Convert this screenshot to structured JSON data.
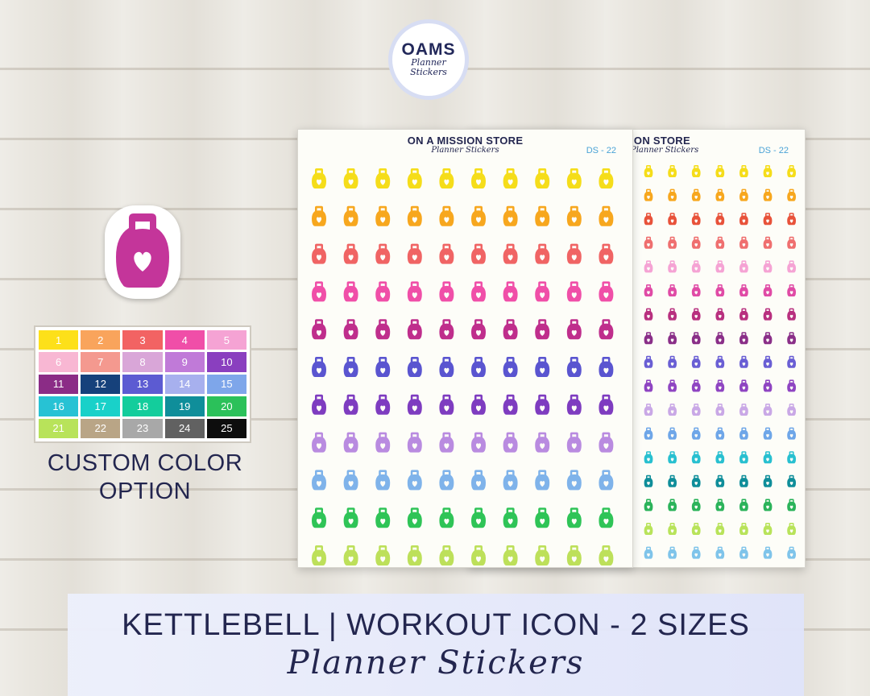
{
  "logo": {
    "main": "OAMS",
    "sub_line1": "Planner",
    "sub_line2": "Stickers"
  },
  "swatches": [
    {
      "n": "1",
      "color": "#fde01a"
    },
    {
      "n": "2",
      "color": "#f9a45c"
    },
    {
      "n": "3",
      "color": "#f26363"
    },
    {
      "n": "4",
      "color": "#f04ea8"
    },
    {
      "n": "5",
      "color": "#f5a3d4"
    },
    {
      "n": "6",
      "color": "#f8b7d3"
    },
    {
      "n": "7",
      "color": "#f4998f"
    },
    {
      "n": "8",
      "color": "#d9a6d8"
    },
    {
      "n": "9",
      "color": "#c07ad8"
    },
    {
      "n": "10",
      "color": "#8a3fbf"
    },
    {
      "n": "11",
      "color": "#8b2c86"
    },
    {
      "n": "12",
      "color": "#16417b"
    },
    {
      "n": "13",
      "color": "#5c5bd2"
    },
    {
      "n": "14",
      "color": "#a7b0ee"
    },
    {
      "n": "15",
      "color": "#7ea6ea"
    },
    {
      "n": "16",
      "color": "#27c2d4"
    },
    {
      "n": "17",
      "color": "#19d1c9"
    },
    {
      "n": "18",
      "color": "#13cd9c"
    },
    {
      "n": "19",
      "color": "#0f8e9a"
    },
    {
      "n": "20",
      "color": "#2bc15a"
    },
    {
      "n": "21",
      "color": "#b8e35a"
    },
    {
      "n": "22",
      "color": "#b9a586"
    },
    {
      "n": "23",
      "color": "#a8a8a8"
    },
    {
      "n": "24",
      "color": "#616161"
    },
    {
      "n": "25",
      "color": "#0d0d0d"
    }
  ],
  "custom_line1": "CUSTOM COLOR",
  "custom_line2": "OPTION",
  "sheet_front": {
    "store": "ON A MISSION STORE",
    "planner": "Planner Stickers",
    "code": "DS - 22",
    "row_colors": [
      "#f5dd1a",
      "#f7a71e",
      "#f06464",
      "#f04fa8",
      "#bf2e8c",
      "#5a55d0",
      "#7e3cc0",
      "#b98be0",
      "#7fb3ea",
      "#2fc457",
      "#bde05a"
    ]
  },
  "sheet_back": {
    "store": "ION STORE",
    "planner": "Planner Stickers",
    "code": "DS - 22",
    "row_colors": [
      "#f5dd1a",
      "#f7a71e",
      "#e8523a",
      "#ef6f6f",
      "#f5a3d4",
      "#e04ba6",
      "#b8307f",
      "#8a2f88",
      "#6a5fd4",
      "#8f45c2",
      "#c9a8e6",
      "#6ea6e8",
      "#28c0d0",
      "#0f8e9a",
      "#2bb35a",
      "#b8e35a",
      "#7fc4ea",
      "#a7b0ee"
    ]
  },
  "icon_color": "#c4359a",
  "title_main": "KETTLEBELL | WORKOUT ICON - 2 SIZES",
  "title_script": "Planner Stickers"
}
